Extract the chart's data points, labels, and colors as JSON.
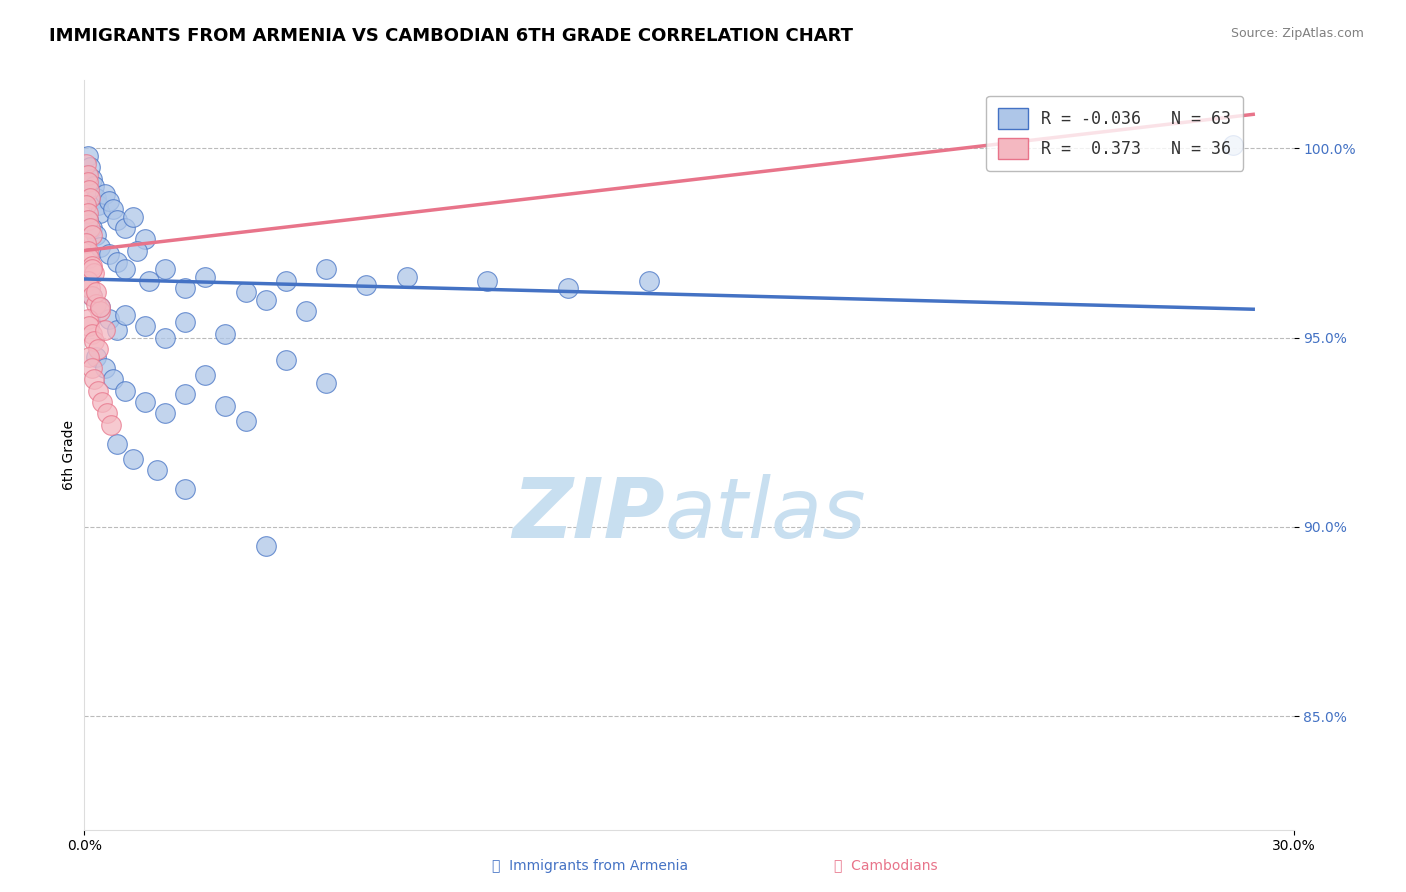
{
  "title": "IMMIGRANTS FROM ARMENIA VS CAMBODIAN 6TH GRADE CORRELATION CHART",
  "source": "Source: ZipAtlas.com",
  "ylabel": "6th Grade",
  "y_ticks": [
    85.0,
    90.0,
    95.0,
    100.0
  ],
  "xmin": 0.0,
  "xmax": 30.0,
  "ymin": 82.0,
  "ymax": 101.8,
  "legend_entries": [
    {
      "label": "Immigrants from Armenia",
      "R": "-0.036",
      "N": "63"
    },
    {
      "label": "Cambodians",
      "R": " 0.373",
      "N": "36"
    }
  ],
  "blue_scatter": [
    [
      0.1,
      99.8
    ],
    [
      0.15,
      99.5
    ],
    [
      0.2,
      99.2
    ],
    [
      0.25,
      99.0
    ],
    [
      0.3,
      98.7
    ],
    [
      0.35,
      98.5
    ],
    [
      0.4,
      98.3
    ],
    [
      0.1,
      98.1
    ],
    [
      0.2,
      97.9
    ],
    [
      0.3,
      97.7
    ],
    [
      0.5,
      98.8
    ],
    [
      0.6,
      98.6
    ],
    [
      0.7,
      98.4
    ],
    [
      0.8,
      98.1
    ],
    [
      1.0,
      97.9
    ],
    [
      1.2,
      98.2
    ],
    [
      1.5,
      97.6
    ],
    [
      0.4,
      97.4
    ],
    [
      0.6,
      97.2
    ],
    [
      0.8,
      97.0
    ],
    [
      1.0,
      96.8
    ],
    [
      1.3,
      97.3
    ],
    [
      1.6,
      96.5
    ],
    [
      2.0,
      96.8
    ],
    [
      2.5,
      96.3
    ],
    [
      3.0,
      96.6
    ],
    [
      4.0,
      96.2
    ],
    [
      5.0,
      96.5
    ],
    [
      6.0,
      96.8
    ],
    [
      7.0,
      96.4
    ],
    [
      8.0,
      96.6
    ],
    [
      10.0,
      96.5
    ],
    [
      12.0,
      96.3
    ],
    [
      14.0,
      96.5
    ],
    [
      0.2,
      96.1
    ],
    [
      0.4,
      95.8
    ],
    [
      0.6,
      95.5
    ],
    [
      0.8,
      95.2
    ],
    [
      1.0,
      95.6
    ],
    [
      1.5,
      95.3
    ],
    [
      2.0,
      95.0
    ],
    [
      2.5,
      95.4
    ],
    [
      3.5,
      95.1
    ],
    [
      4.5,
      96.0
    ],
    [
      5.5,
      95.7
    ],
    [
      0.3,
      94.5
    ],
    [
      0.5,
      94.2
    ],
    [
      0.7,
      93.9
    ],
    [
      1.0,
      93.6
    ],
    [
      1.5,
      93.3
    ],
    [
      2.0,
      93.0
    ],
    [
      2.5,
      93.5
    ],
    [
      3.0,
      94.0
    ],
    [
      3.5,
      93.2
    ],
    [
      4.0,
      92.8
    ],
    [
      5.0,
      94.4
    ],
    [
      6.0,
      93.8
    ],
    [
      0.8,
      92.2
    ],
    [
      1.2,
      91.8
    ],
    [
      1.8,
      91.5
    ],
    [
      2.5,
      91.0
    ],
    [
      4.5,
      89.5
    ],
    [
      28.5,
      100.1
    ]
  ],
  "pink_scatter": [
    [
      0.05,
      99.6
    ],
    [
      0.08,
      99.3
    ],
    [
      0.1,
      99.1
    ],
    [
      0.12,
      98.9
    ],
    [
      0.15,
      98.7
    ],
    [
      0.05,
      98.5
    ],
    [
      0.08,
      98.3
    ],
    [
      0.1,
      98.1
    ],
    [
      0.15,
      97.9
    ],
    [
      0.2,
      97.7
    ],
    [
      0.05,
      97.5
    ],
    [
      0.08,
      97.3
    ],
    [
      0.12,
      97.1
    ],
    [
      0.18,
      96.9
    ],
    [
      0.25,
      96.7
    ],
    [
      0.1,
      96.5
    ],
    [
      0.15,
      96.3
    ],
    [
      0.2,
      96.1
    ],
    [
      0.3,
      95.9
    ],
    [
      0.4,
      95.7
    ],
    [
      0.08,
      95.5
    ],
    [
      0.12,
      95.3
    ],
    [
      0.18,
      95.1
    ],
    [
      0.25,
      94.9
    ],
    [
      0.35,
      94.7
    ],
    [
      0.2,
      96.8
    ],
    [
      0.3,
      96.2
    ],
    [
      0.4,
      95.8
    ],
    [
      0.5,
      95.2
    ],
    [
      0.12,
      94.5
    ],
    [
      0.18,
      94.2
    ],
    [
      0.25,
      93.9
    ],
    [
      0.35,
      93.6
    ],
    [
      0.45,
      93.3
    ],
    [
      0.55,
      93.0
    ],
    [
      0.65,
      92.7
    ]
  ],
  "blue_line": {
    "x0": 0.0,
    "x1": 29.0,
    "y0": 96.55,
    "y1": 95.75
  },
  "pink_line": {
    "x0": 0.0,
    "x1": 29.0,
    "y0": 97.3,
    "y1": 100.9
  },
  "blue_color": "#4472c4",
  "pink_color": "#e8748a",
  "blue_scatter_fill": "#aec6e8",
  "pink_scatter_fill": "#f4b8c1",
  "watermark_zip": "ZIP",
  "watermark_atlas": "atlas",
  "watermark_color": "#c8dff0",
  "grid_color": "#bbbbbb",
  "title_fontsize": 13,
  "source_fontsize": 9
}
